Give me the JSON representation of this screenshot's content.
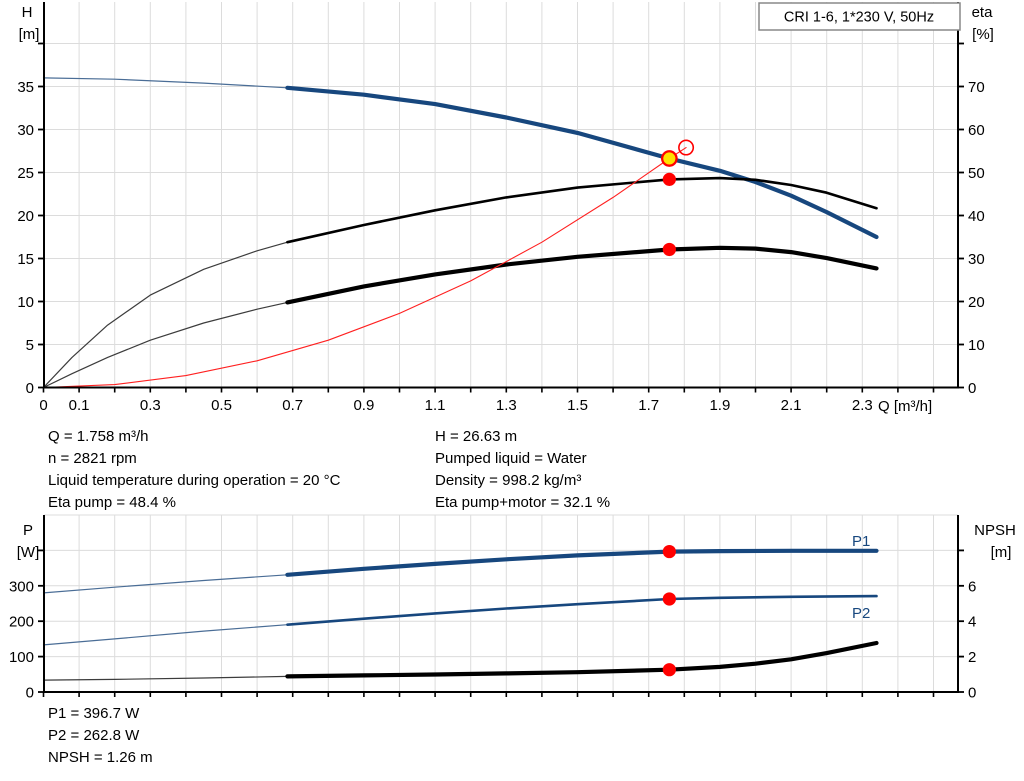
{
  "colors": {
    "curve_blue": "#17477E",
    "thin_blue": "#4A6D96",
    "curve_black": "#000000",
    "thin_black": "#3C3C3C",
    "curve_red": "#FF2020",
    "marker_red": "#FF0000",
    "marker_yellow": "#FFE100",
    "grid": "#DCDCDC",
    "axis": "#000000",
    "box_border": "#888888"
  },
  "info_top": {
    "left": [
      "Q = 1.758 m³/h",
      "n = 2821 rpm",
      "Liquid temperature during operation = 20 °C",
      "Eta pump = 48.4 %"
    ],
    "right": [
      "H = 26.63 m",
      "Pumped liquid = Water",
      "Density = 998.2 kg/m³",
      "Eta pump+motor = 32.1 %"
    ]
  },
  "info_bottom": {
    "lines": [
      "P1 = 396.7 W",
      "P2 = 262.8 W",
      "NPSH = 1.26 m"
    ]
  },
  "chart_data": [
    {
      "id": "qh-eta-chart",
      "type": "line",
      "title": "CRI 1-6, 1*230 V, 50Hz",
      "axis_labels": {
        "left_name": "H",
        "left_unit": "[m]",
        "right_name": "eta",
        "right_unit": "[%]",
        "x_unit": "Q [m³/h]"
      },
      "xlim": [
        0,
        2.57
      ],
      "ylim_left": [
        0,
        40
      ],
      "ylim_right": [
        0,
        80
      ],
      "x_tick_step": 0.1,
      "x_tick_max": 2.5,
      "x_major_labels": [
        "0",
        "0.1",
        "0.3",
        "0.5",
        "0.7",
        "0.9",
        "1.1",
        "1.3",
        "1.5",
        "1.7",
        "1.9",
        "2.1",
        "2.3"
      ],
      "left_ticks": [
        0,
        5,
        10,
        15,
        20,
        25,
        30,
        35
      ],
      "right_ticks": [
        0,
        10,
        20,
        30,
        40,
        50,
        60,
        70
      ],
      "grid": true,
      "series": [
        {
          "name": "qh-curve-min-flow",
          "axis": "left",
          "color": "thin_blue",
          "width": 1.2,
          "points": [
            [
              0,
              36.0
            ],
            [
              0.2,
              35.85
            ],
            [
              0.45,
              35.4
            ],
            [
              0.685,
              34.85
            ]
          ]
        },
        {
          "name": "qh-curve",
          "axis": "left",
          "color": "curve_blue",
          "width": 4.2,
          "points": [
            [
              0.685,
              34.85
            ],
            [
              0.9,
              34.05
            ],
            [
              1.1,
              32.95
            ],
            [
              1.3,
              31.4
            ],
            [
              1.5,
              29.6
            ],
            [
              1.758,
              26.63
            ],
            [
              1.9,
              25.2
            ],
            [
              2.0,
              23.9
            ],
            [
              2.1,
              22.3
            ],
            [
              2.2,
              20.4
            ],
            [
              2.34,
              17.5
            ]
          ]
        },
        {
          "name": "eta-pump-min-flow",
          "axis": "right",
          "color": "thin_black",
          "width": 1.2,
          "points": [
            [
              0,
              0
            ],
            [
              0.08,
              7
            ],
            [
              0.18,
              14.5
            ],
            [
              0.3,
              21.5
            ],
            [
              0.45,
              27.5
            ],
            [
              0.6,
              31.8
            ],
            [
              0.685,
              33.8
            ]
          ]
        },
        {
          "name": "eta-pump-curve",
          "axis": "right",
          "color": "curve_black",
          "width": 2.6,
          "points": [
            [
              0.685,
              33.8
            ],
            [
              0.9,
              37.8
            ],
            [
              1.1,
              41.2
            ],
            [
              1.3,
              44.2
            ],
            [
              1.5,
              46.5
            ],
            [
              1.758,
              48.4
            ],
            [
              1.9,
              48.7
            ],
            [
              2.0,
              48.3
            ],
            [
              2.1,
              47.1
            ],
            [
              2.2,
              45.3
            ],
            [
              2.34,
              41.7
            ]
          ]
        },
        {
          "name": "eta-pump-motor-min-flow",
          "axis": "right",
          "color": "thin_black",
          "width": 1.2,
          "points": [
            [
              0,
              0
            ],
            [
              0.08,
              3.2
            ],
            [
              0.18,
              7
            ],
            [
              0.3,
              11
            ],
            [
              0.45,
              15
            ],
            [
              0.6,
              18.2
            ],
            [
              0.685,
              19.8
            ]
          ]
        },
        {
          "name": "eta-pump-motor-curve",
          "axis": "right",
          "color": "curve_black",
          "width": 4.2,
          "points": [
            [
              0.685,
              19.8
            ],
            [
              0.9,
              23.5
            ],
            [
              1.1,
              26.3
            ],
            [
              1.3,
              28.6
            ],
            [
              1.5,
              30.4
            ],
            [
              1.758,
              32.1
            ],
            [
              1.9,
              32.5
            ],
            [
              2.0,
              32.3
            ],
            [
              2.1,
              31.5
            ],
            [
              2.2,
              30.1
            ],
            [
              2.34,
              27.7
            ]
          ]
        },
        {
          "name": "system-curve",
          "axis": "left",
          "color": "curve_red",
          "width": 1.1,
          "points": [
            [
              0,
              0
            ],
            [
              0.2,
              0.34
            ],
            [
              0.4,
              1.38
            ],
            [
              0.6,
              3.1
            ],
            [
              0.8,
              5.5
            ],
            [
              1.0,
              8.62
            ],
            [
              1.2,
              12.4
            ],
            [
              1.4,
              16.9
            ],
            [
              1.6,
              22.1
            ],
            [
              1.758,
              26.63
            ],
            [
              1.805,
              27.9
            ]
          ]
        }
      ],
      "markers": [
        {
          "kind": "duty-point",
          "style": "duty",
          "axis": "left",
          "x": 1.758,
          "y": 26.63
        },
        {
          "kind": "requested-duty-point",
          "style": "open",
          "axis": "left",
          "x": 1.805,
          "y": 27.9
        },
        {
          "kind": "eta-pump-point",
          "style": "red",
          "axis": "right",
          "x": 1.758,
          "y": 48.4
        },
        {
          "kind": "eta-pump-motor-point",
          "style": "red",
          "axis": "right",
          "x": 1.758,
          "y": 32.1
        }
      ]
    },
    {
      "id": "power-npsh-chart",
      "type": "line",
      "axis_labels": {
        "left_name": "P",
        "left_unit": "[W]",
        "right_name": "NPSH",
        "right_unit": "[m]"
      },
      "xlim": [
        0,
        2.57
      ],
      "ylim_left": [
        0,
        500
      ],
      "ylim_right": [
        0,
        10
      ],
      "x_tick_step": 0.1,
      "x_tick_max": 2.5,
      "left_ticks": [
        0,
        100,
        200,
        300
      ],
      "right_ticks": [
        0,
        2,
        4,
        6
      ],
      "grid": true,
      "series_labels": [
        {
          "text": "P1",
          "x": 2.27,
          "value": 430,
          "axis": "left"
        },
        {
          "text": "P2",
          "x": 2.27,
          "value": 222,
          "axis": "left"
        }
      ],
      "series": [
        {
          "name": "p1-curve-min-flow",
          "axis": "left",
          "color": "thin_blue",
          "width": 1.2,
          "points": [
            [
              0,
              280
            ],
            [
              0.2,
              296
            ],
            [
              0.45,
              315
            ],
            [
              0.685,
              331
            ]
          ]
        },
        {
          "name": "p1-curve",
          "axis": "left",
          "color": "curve_blue",
          "width": 4.2,
          "points": [
            [
              0.685,
              331
            ],
            [
              0.9,
              348
            ],
            [
              1.1,
              362
            ],
            [
              1.3,
              375
            ],
            [
              1.5,
              386
            ],
            [
              1.758,
              396.7
            ],
            [
              1.9,
              398
            ],
            [
              2.1,
              399
            ],
            [
              2.34,
              399
            ]
          ]
        },
        {
          "name": "p2-curve-min-flow",
          "axis": "left",
          "color": "thin_blue",
          "width": 1.2,
          "points": [
            [
              0,
              133
            ],
            [
              0.2,
              150
            ],
            [
              0.45,
              172
            ],
            [
              0.685,
              190
            ]
          ]
        },
        {
          "name": "p2-curve",
          "axis": "left",
          "color": "curve_blue",
          "width": 2.6,
          "points": [
            [
              0.685,
              190
            ],
            [
              0.9,
              207
            ],
            [
              1.1,
              222
            ],
            [
              1.3,
              236
            ],
            [
              1.5,
              248
            ],
            [
              1.758,
              262.8
            ],
            [
              1.9,
              266
            ],
            [
              2.1,
              269
            ],
            [
              2.34,
              271
            ]
          ]
        },
        {
          "name": "npsh-curve-min-flow",
          "axis": "right",
          "color": "thin_black",
          "width": 1.2,
          "points": [
            [
              0,
              0.67
            ],
            [
              0.2,
              0.71
            ],
            [
              0.45,
              0.79
            ],
            [
              0.685,
              0.88
            ]
          ]
        },
        {
          "name": "npsh-curve",
          "axis": "right",
          "color": "curve_black",
          "width": 4.2,
          "points": [
            [
              0.685,
              0.88
            ],
            [
              0.9,
              0.94
            ],
            [
              1.1,
              0.99
            ],
            [
              1.3,
              1.05
            ],
            [
              1.5,
              1.12
            ],
            [
              1.758,
              1.26
            ],
            [
              1.9,
              1.42
            ],
            [
              2.0,
              1.6
            ],
            [
              2.1,
              1.85
            ],
            [
              2.2,
              2.2
            ],
            [
              2.34,
              2.77
            ]
          ]
        }
      ],
      "markers": [
        {
          "kind": "p1-point",
          "style": "red",
          "axis": "left",
          "x": 1.758,
          "y": 396.7
        },
        {
          "kind": "p2-point",
          "style": "red",
          "axis": "left",
          "x": 1.758,
          "y": 262.8
        },
        {
          "kind": "npsh-point",
          "style": "red",
          "axis": "right",
          "x": 1.758,
          "y": 1.26
        }
      ]
    }
  ]
}
